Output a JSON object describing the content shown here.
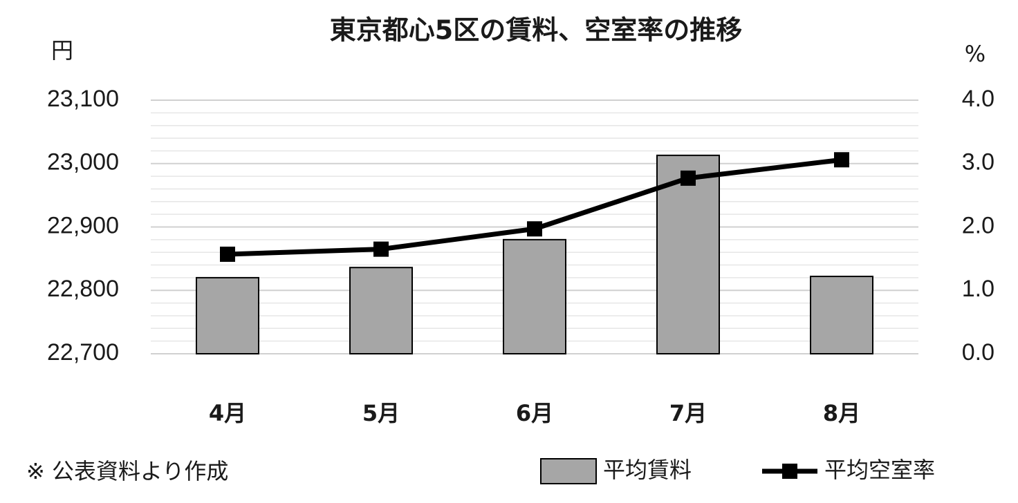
{
  "chart_data": {
    "type": "bar-line",
    "title": "東京都心5区の賃料、空室率の推移",
    "y_unit": "円",
    "y2_unit": "%",
    "note": "※ 公表資料より作成",
    "categories": [
      "4月",
      "5月",
      "6月",
      "7月",
      "8月"
    ],
    "series": [
      {
        "name": "平均賃料",
        "type": "bar",
        "color": "#a6a6a6",
        "values": [
          22820,
          22836,
          22880,
          23013,
          22822
        ]
      },
      {
        "name": "平均空室率",
        "type": "line",
        "axis": "y2",
        "color": "#000000",
        "values": [
          1.57,
          1.65,
          1.97,
          2.77,
          3.06
        ]
      }
    ],
    "ylim": [
      22700,
      23100
    ],
    "yticks": [
      {
        "value": 22700,
        "label": "22,700"
      },
      {
        "value": 22800,
        "label": "22,800"
      },
      {
        "value": 22900,
        "label": "22,900"
      },
      {
        "value": 23000,
        "label": "23,000"
      },
      {
        "value": 23100,
        "label": "23,100"
      }
    ],
    "y2lim": [
      0,
      4
    ],
    "y2ticks": [
      {
        "value": 0,
        "label": "0.0"
      },
      {
        "value": 1,
        "label": "1.0"
      },
      {
        "value": 2,
        "label": "2.0"
      },
      {
        "value": 3,
        "label": "3.0"
      },
      {
        "value": 4,
        "label": "4.0"
      }
    ],
    "grid": true,
    "minor_grid_divisions": 5,
    "legend": "bottom-right"
  }
}
